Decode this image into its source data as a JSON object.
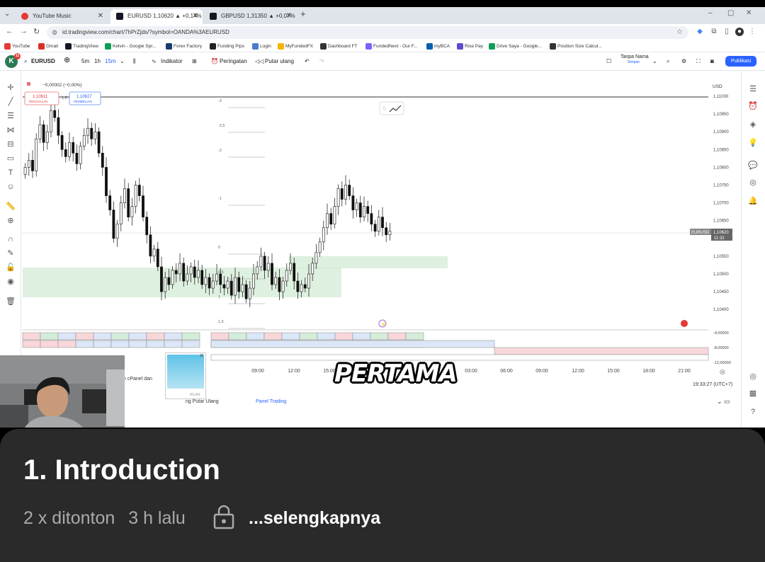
{
  "browser": {
    "tabs": [
      {
        "title": "YouTube Music",
        "color": "#e53935"
      },
      {
        "title": "EURUSD 1,10620 ▲ +0,14% Ta",
        "color": "#131722"
      },
      {
        "title": "GBPUSD 1,31350 ▲ +0,07% Ta",
        "color": "#131722"
      }
    ],
    "new_tab": "+",
    "url": "id.tradingview.com/chart/7hPrZjds/?symbol=OANDA%3AEURUSD",
    "bookmarks": [
      {
        "label": "YouTube",
        "color": "#e53935"
      },
      {
        "label": "Gmail",
        "color": "#d93025"
      },
      {
        "label": "TradingView",
        "color": "#131722"
      },
      {
        "label": "Kelvin - Google Spr...",
        "color": "#0f9d58"
      },
      {
        "label": "Forex Factory",
        "color": "#1a3b6e"
      },
      {
        "label": "Funding Pips",
        "color": "#222"
      },
      {
        "label": "Login",
        "color": "#4a7bd0"
      },
      {
        "label": "MyFundedFX",
        "color": "#f4b400"
      },
      {
        "label": "Dashboard FT",
        "color": "#333"
      },
      {
        "label": "FundedNext - Our F...",
        "color": "#7b61ff"
      },
      {
        "label": "myBCA",
        "color": "#0060af"
      },
      {
        "label": "Rise Pay",
        "color": "#5b4ccc"
      },
      {
        "label": "Drive Saya - Google...",
        "color": "#0f9d58"
      },
      {
        "label": "Position Size Calcul...",
        "color": "#333"
      }
    ]
  },
  "tv": {
    "symbol": "EURUSD",
    "timeframes": [
      "5m",
      "1h",
      "15m"
    ],
    "indicators": "Indikator",
    "alert": "Peringatan",
    "replay": "Putar ulang",
    "layout_name": "Tanpa Nama",
    "layout_sub": "Simpan",
    "publish": "Publikasi",
    "change": "−0,00002 (−0,00%)",
    "sell_price": "1,10611",
    "sell_label": "PENJUALAN",
    "spread": "1,5",
    "buy_price": "1,10627",
    "buy_label": "PEMBELIAN",
    "currency": "USD",
    "symbol_tag": "EURUSD",
    "last_price": "1,10620",
    "countdown": "11:32",
    "clock": "19:33:27 (UTC+7)",
    "cpanel": "n cPanel dan",
    "replay_tab": "ng Putar Ulang",
    "trading_panel": "Panel Trading",
    "ad_label": "IKLAN"
  },
  "caption": "PERTAMA",
  "chart_data": {
    "type": "candlestick",
    "y_axis_ticks": [
      "1,11000",
      "1,10950",
      "1,10900",
      "1,10850",
      "1,10800",
      "1,10750",
      "1,10700",
      "1,10650",
      "1,10600",
      "1,10550",
      "1,10500",
      "1,10450",
      "1,10400"
    ],
    "fib_levels": [
      "-3",
      "-2,5",
      "-2",
      "-1",
      "0",
      "0,5",
      "1",
      "1,5"
    ],
    "indicator_ticks": [
      "-4,00000",
      "-8,00000",
      "-12,00000"
    ],
    "time_ticks": [
      "09:00",
      "12:00",
      "15:00",
      "3",
      "03:00",
      "06:00",
      "09:00",
      "12:00",
      "15:00",
      "18:00",
      "21:00"
    ],
    "closes": [
      1.108,
      1.1082,
      1.1079,
      1.1088,
      1.1092,
      1.1087,
      1.109,
      1.1096,
      1.1094,
      1.1089,
      1.1085,
      1.1083,
      1.1087,
      1.1084,
      1.1081,
      1.1086,
      1.1089,
      1.1091,
      1.1088,
      1.109,
      1.1084,
      1.108,
      1.1072,
      1.1068,
      1.106,
      1.1064,
      1.107,
      1.1074,
      1.1066,
      1.1069,
      1.1075,
      1.1072,
      1.1066,
      1.1061,
      1.1055,
      1.1057,
      1.1052,
      1.1045,
      1.1049,
      1.1047,
      1.1051,
      1.105,
      1.1053,
      1.1048,
      1.105,
      1.1052,
      1.1049,
      1.1051,
      1.1047,
      1.1049,
      1.1046,
      1.1048,
      1.105,
      1.1047,
      1.1046,
      1.1048,
      1.1044,
      1.1049,
      1.1045,
      1.1047,
      1.1043,
      1.1046,
      1.105,
      1.1052,
      1.1055,
      1.1051,
      1.1053,
      1.1047,
      1.1049,
      1.1045,
      1.1048,
      1.1051,
      1.1053,
      1.1048,
      1.1045,
      1.1047,
      1.1046,
      1.105,
      1.1053,
      1.1056,
      1.1059,
      1.1063,
      1.1067,
      1.1064,
      1.1069,
      1.1074,
      1.1071,
      1.1075,
      1.1072,
      1.1068,
      1.107,
      1.1066,
      1.1069,
      1.1067,
      1.1064,
      1.1062,
      1.1066,
      1.1063,
      1.1061,
      1.1062
    ]
  },
  "video": {
    "title": "1. Introduction",
    "views": "2 x ditonton",
    "age": "3 h lalu",
    "more": "...selengkapnya"
  }
}
